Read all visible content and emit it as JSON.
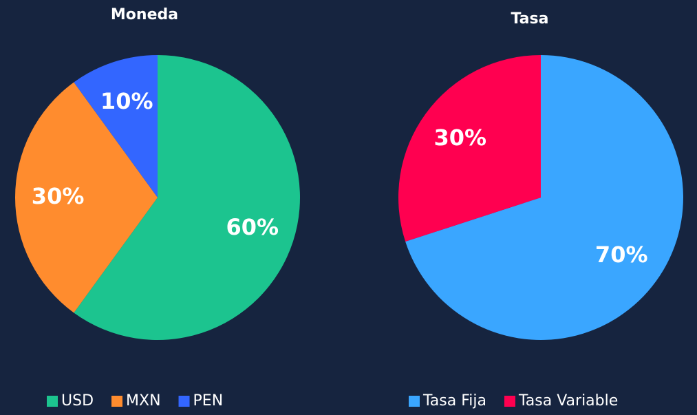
{
  "chart_data": [
    {
      "type": "pie",
      "title": "Moneda",
      "categories": [
        "USD",
        "MXN",
        "PEN"
      ],
      "values": [
        60,
        30,
        10
      ],
      "value_labels": [
        "60%",
        "30%",
        "10%"
      ],
      "colors": [
        "#1cc48f",
        "#ff8c2e",
        "#3366ff"
      ],
      "legend": "bottom"
    },
    {
      "type": "pie",
      "title": "Tasa",
      "categories": [
        "Tasa Fija",
        "Tasa Variable"
      ],
      "values": [
        70,
        30
      ],
      "value_labels": [
        "70%",
        "30%"
      ],
      "colors": [
        "#3aa6ff",
        "#ff0050"
      ],
      "legend": "bottom"
    }
  ]
}
